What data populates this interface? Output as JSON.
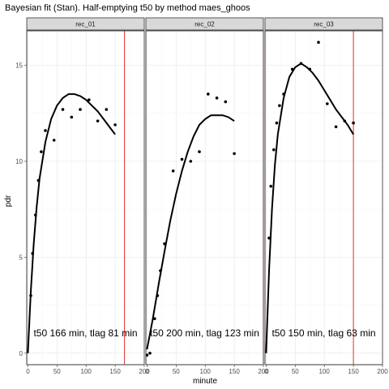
{
  "chart_data": {
    "type": "scatter",
    "title": "Bayesian fit (Stan). Half-emptying t50 by method maes_ghoos",
    "xlabel": "minute",
    "ylabel": "pdr",
    "xlim": [
      -2,
      200
    ],
    "ylim": [
      -0.6,
      16.8
    ],
    "x_ticks": [
      0,
      50,
      100,
      150,
      200
    ],
    "y_ticks": [
      0,
      5,
      10,
      15
    ],
    "grid": true,
    "panels": [
      {
        "name": "rec_01",
        "annotation": "t50 166 min,  tlag 81 min",
        "t50": 166,
        "points": [
          [
            5,
            3.0
          ],
          [
            8,
            5.2
          ],
          [
            13,
            7.2
          ],
          [
            18,
            9.0
          ],
          [
            23,
            10.5
          ],
          [
            30,
            11.6
          ],
          [
            45,
            11.1
          ],
          [
            60,
            12.7
          ],
          [
            75,
            12.3
          ],
          [
            90,
            12.7
          ],
          [
            105,
            13.2
          ],
          [
            120,
            12.1
          ],
          [
            135,
            12.7
          ],
          [
            150,
            11.9
          ]
        ],
        "fit": [
          [
            0,
            0
          ],
          [
            5,
            3.2
          ],
          [
            10,
            5.7
          ],
          [
            15,
            7.6
          ],
          [
            20,
            9.1
          ],
          [
            30,
            11.0
          ],
          [
            40,
            12.2
          ],
          [
            50,
            12.9
          ],
          [
            60,
            13.3
          ],
          [
            70,
            13.5
          ],
          [
            80,
            13.5
          ],
          [
            90,
            13.4
          ],
          [
            100,
            13.2
          ],
          [
            110,
            12.9
          ],
          [
            120,
            12.6
          ],
          [
            130,
            12.2
          ],
          [
            140,
            11.8
          ],
          [
            150,
            11.4
          ]
        ]
      },
      {
        "name": "rec_02",
        "annotation": "t50 200 min,  tlag 123 min",
        "t50": 200,
        "points": [
          [
            0,
            -0.1
          ],
          [
            5,
            0.0
          ],
          [
            13,
            1.8
          ],
          [
            18,
            3.0
          ],
          [
            23,
            4.3
          ],
          [
            30,
            5.7
          ],
          [
            45,
            9.5
          ],
          [
            60,
            10.1
          ],
          [
            75,
            10.0
          ],
          [
            90,
            10.5
          ],
          [
            105,
            13.5
          ],
          [
            120,
            13.3
          ],
          [
            135,
            13.1
          ],
          [
            150,
            10.4
          ]
        ],
        "fit": [
          [
            0,
            0.2
          ],
          [
            10,
            1.8
          ],
          [
            20,
            3.6
          ],
          [
            30,
            5.3
          ],
          [
            40,
            6.9
          ],
          [
            50,
            8.3
          ],
          [
            60,
            9.5
          ],
          [
            70,
            10.5
          ],
          [
            80,
            11.3
          ],
          [
            90,
            11.9
          ],
          [
            100,
            12.2
          ],
          [
            110,
            12.4
          ],
          [
            120,
            12.4
          ],
          [
            130,
            12.4
          ],
          [
            140,
            12.3
          ],
          [
            150,
            12.1
          ]
        ]
      },
      {
        "name": "rec_03",
        "annotation": "t50 150 min,  tlag 63 min",
        "t50": 150,
        "points": [
          [
            5,
            6.0
          ],
          [
            8,
            8.7
          ],
          [
            13,
            10.6
          ],
          [
            18,
            12.0
          ],
          [
            23,
            12.9
          ],
          [
            30,
            13.5
          ],
          [
            45,
            14.8
          ],
          [
            60,
            15.1
          ],
          [
            75,
            14.8
          ],
          [
            90,
            16.2
          ],
          [
            105,
            13.0
          ],
          [
            120,
            11.8
          ],
          [
            135,
            12.1
          ],
          [
            150,
            12.0
          ]
        ],
        "fit": [
          [
            0,
            0
          ],
          [
            5,
            4.3
          ],
          [
            10,
            7.5
          ],
          [
            15,
            9.8
          ],
          [
            20,
            11.4
          ],
          [
            30,
            13.3
          ],
          [
            40,
            14.4
          ],
          [
            50,
            14.9
          ],
          [
            60,
            15.1
          ],
          [
            70,
            14.9
          ],
          [
            80,
            14.6
          ],
          [
            90,
            14.2
          ],
          [
            100,
            13.7
          ],
          [
            110,
            13.2
          ],
          [
            120,
            12.7
          ],
          [
            130,
            12.3
          ],
          [
            140,
            11.9
          ],
          [
            150,
            11.4
          ]
        ]
      }
    ]
  }
}
